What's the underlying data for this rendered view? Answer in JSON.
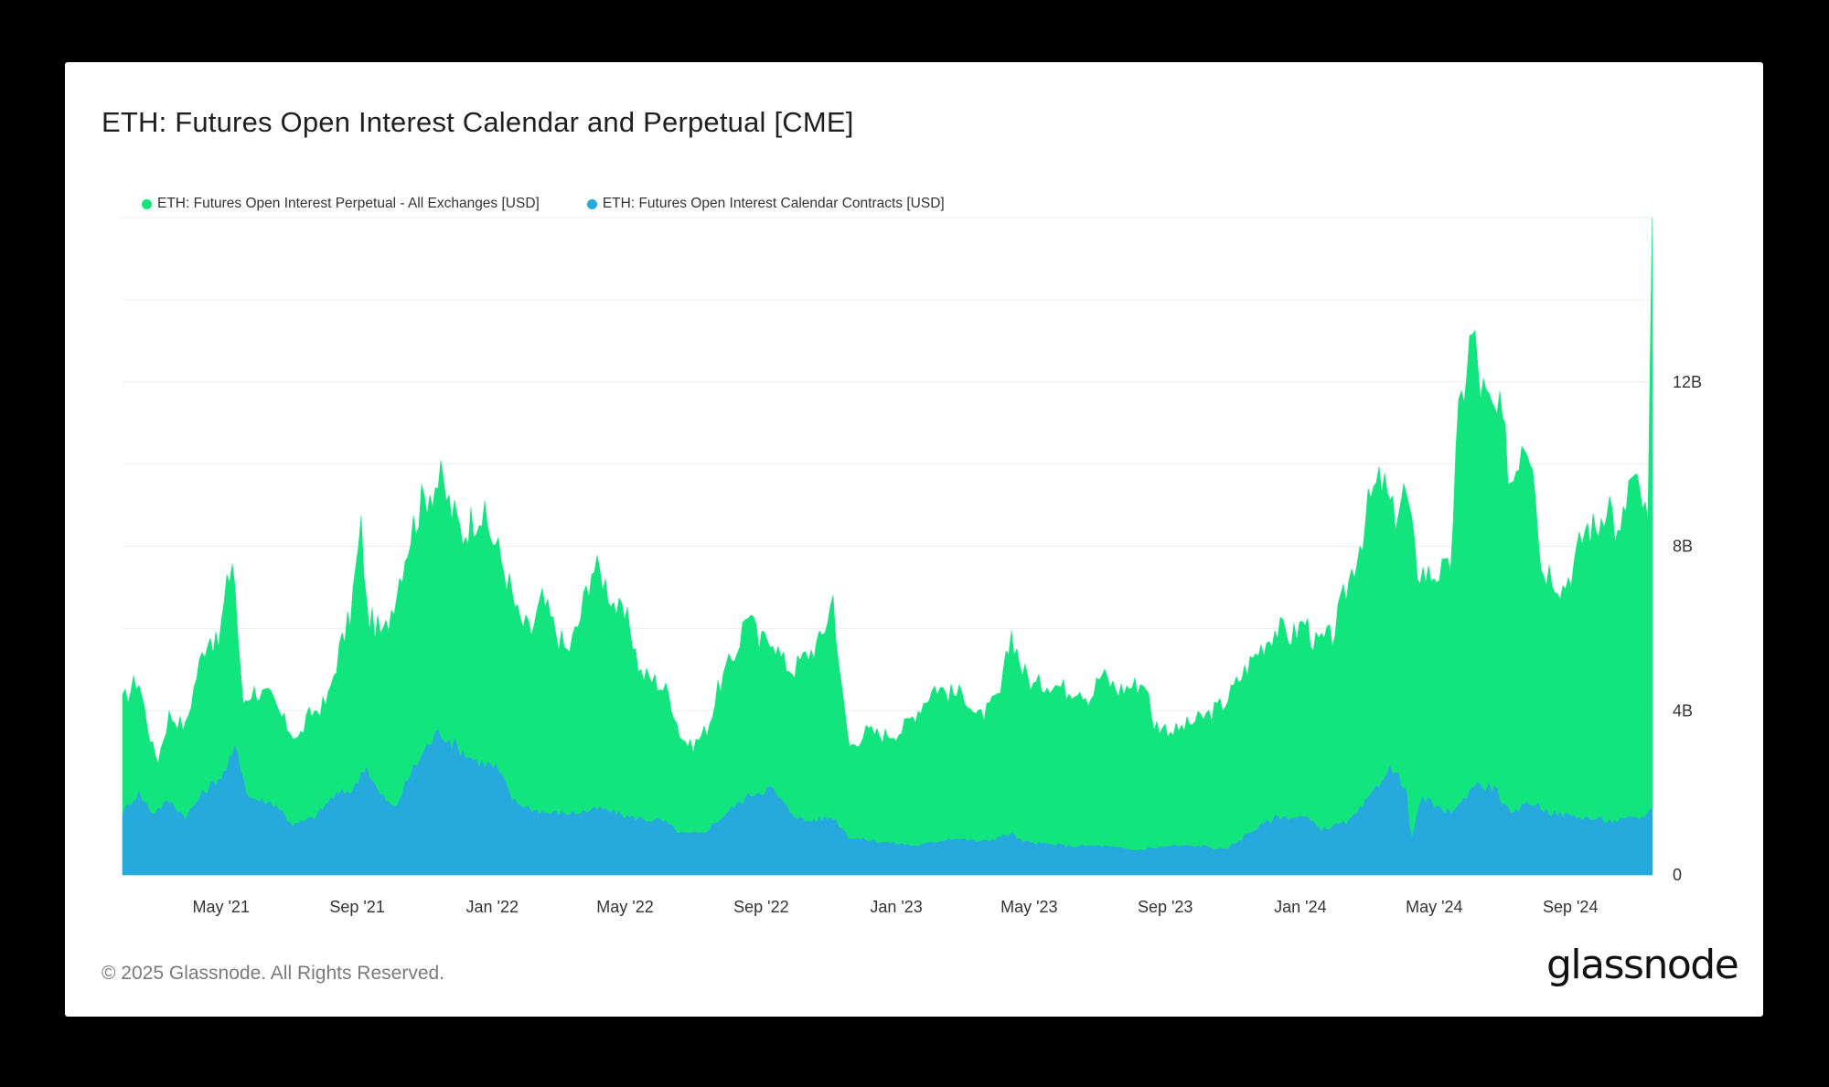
{
  "title": "ETH: Futures Open Interest Calendar and Perpetual [CME]",
  "footer": "© 2025 Glassnode. All Rights Reserved.",
  "logo": "glassnode",
  "colors": {
    "perpetual": "#12e57d",
    "calendar": "#26a9dc",
    "grid": "#eeeeee",
    "background": "#ffffff"
  },
  "chart_data": {
    "type": "area",
    "stacked": true,
    "x_range": [
      "2021-02-01",
      "2024-11-15"
    ],
    "y_range": [
      0,
      16
    ],
    "y_unit": "B USD",
    "grid": true,
    "legend_position": "top-left",
    "y_ticks": [
      {
        "value": 0,
        "label": "0"
      },
      {
        "value": 4,
        "label": "4B"
      },
      {
        "value": 8,
        "label": "8B"
      },
      {
        "value": 12,
        "label": "12B"
      }
    ],
    "x_ticks": [
      {
        "date": "2021-05-01",
        "label": "May '21"
      },
      {
        "date": "2021-09-01",
        "label": "Sep '21"
      },
      {
        "date": "2022-01-01",
        "label": "Jan '22"
      },
      {
        "date": "2022-05-01",
        "label": "May '22"
      },
      {
        "date": "2022-09-01",
        "label": "Sep '22"
      },
      {
        "date": "2023-01-01",
        "label": "Jan '23"
      },
      {
        "date": "2023-05-01",
        "label": "May '23"
      },
      {
        "date": "2023-09-01",
        "label": "Sep '23"
      },
      {
        "date": "2024-01-01",
        "label": "Jan '24"
      },
      {
        "date": "2024-05-01",
        "label": "May '24"
      },
      {
        "date": "2024-09-01",
        "label": "Sep '24"
      }
    ],
    "series": [
      {
        "name": "ETH: Futures Open Interest Perpetual - All Exchanges [USD]",
        "color": "#12e57d",
        "stacked_total": true,
        "points": [
          [
            "2021-02-01",
            4.2
          ],
          [
            "2021-02-15",
            4.8
          ],
          [
            "2021-02-28",
            3.1
          ],
          [
            "2021-03-05",
            2.8
          ],
          [
            "2021-03-15",
            3.9
          ],
          [
            "2021-03-30",
            3.6
          ],
          [
            "2021-04-10",
            5.0
          ],
          [
            "2021-04-20",
            5.9
          ],
          [
            "2021-04-28",
            5.5
          ],
          [
            "2021-05-05",
            6.8
          ],
          [
            "2021-05-12",
            7.8
          ],
          [
            "2021-05-20",
            4.2
          ],
          [
            "2021-05-30",
            4.5
          ],
          [
            "2021-06-15",
            4.3
          ],
          [
            "2021-06-30",
            3.6
          ],
          [
            "2021-07-10",
            3.3
          ],
          [
            "2021-07-20",
            3.9
          ],
          [
            "2021-08-05",
            4.2
          ],
          [
            "2021-08-15",
            5.4
          ],
          [
            "2021-08-25",
            6.2
          ],
          [
            "2021-09-05",
            8.5
          ],
          [
            "2021-09-10",
            6.3
          ],
          [
            "2021-09-25",
            5.8
          ],
          [
            "2021-10-05",
            6.8
          ],
          [
            "2021-10-15",
            7.9
          ],
          [
            "2021-10-25",
            8.8
          ],
          [
            "2021-11-05",
            9.4
          ],
          [
            "2021-11-15",
            9.6
          ],
          [
            "2021-11-25",
            8.9
          ],
          [
            "2021-12-05",
            8.3
          ],
          [
            "2021-12-20",
            8.9
          ],
          [
            "2022-01-05",
            8.0
          ],
          [
            "2022-01-15",
            7.2
          ],
          [
            "2022-01-25",
            6.2
          ],
          [
            "2022-02-05",
            5.9
          ],
          [
            "2022-02-15",
            6.7
          ],
          [
            "2022-02-28",
            5.9
          ],
          [
            "2022-03-10",
            5.4
          ],
          [
            "2022-03-20",
            6.1
          ],
          [
            "2022-04-01",
            7.5
          ],
          [
            "2022-04-10",
            7.3
          ],
          [
            "2022-04-25",
            6.4
          ],
          [
            "2022-05-05",
            6.1
          ],
          [
            "2022-05-15",
            4.9
          ],
          [
            "2022-05-30",
            4.7
          ],
          [
            "2022-06-10",
            4.4
          ],
          [
            "2022-06-20",
            3.4
          ],
          [
            "2022-06-30",
            3.1
          ],
          [
            "2022-07-15",
            3.6
          ],
          [
            "2022-07-25",
            4.6
          ],
          [
            "2022-08-10",
            5.5
          ],
          [
            "2022-08-20",
            6.5
          ],
          [
            "2022-08-30",
            5.6
          ],
          [
            "2022-09-10",
            5.9
          ],
          [
            "2022-09-20",
            5.2
          ],
          [
            "2022-09-30",
            5.0
          ],
          [
            "2022-10-10",
            5.3
          ],
          [
            "2022-10-25",
            5.7
          ],
          [
            "2022-11-05",
            6.8
          ],
          [
            "2022-11-12",
            4.6
          ],
          [
            "2022-11-20",
            3.1
          ],
          [
            "2022-12-05",
            3.5
          ],
          [
            "2022-12-20",
            3.4
          ],
          [
            "2023-01-05",
            3.5
          ],
          [
            "2023-01-20",
            4.0
          ],
          [
            "2023-02-05",
            4.6
          ],
          [
            "2023-02-20",
            4.4
          ],
          [
            "2023-03-05",
            4.4
          ],
          [
            "2023-03-15",
            3.8
          ],
          [
            "2023-03-25",
            4.0
          ],
          [
            "2023-04-05",
            4.4
          ],
          [
            "2023-04-15",
            5.9
          ],
          [
            "2023-04-25",
            5.0
          ],
          [
            "2023-05-05",
            4.6
          ],
          [
            "2023-05-20",
            4.7
          ],
          [
            "2023-06-05",
            4.5
          ],
          [
            "2023-06-15",
            4.6
          ],
          [
            "2023-06-25",
            4.3
          ],
          [
            "2023-07-05",
            4.9
          ],
          [
            "2023-07-20",
            4.5
          ],
          [
            "2023-08-01",
            4.6
          ],
          [
            "2023-08-15",
            4.7
          ],
          [
            "2023-08-20",
            3.7
          ],
          [
            "2023-09-10",
            3.5
          ],
          [
            "2023-09-25",
            3.7
          ],
          [
            "2023-10-10",
            3.9
          ],
          [
            "2023-10-25",
            4.2
          ],
          [
            "2023-11-10",
            4.9
          ],
          [
            "2023-11-25",
            5.5
          ],
          [
            "2023-12-10",
            6.0
          ],
          [
            "2023-12-25",
            5.8
          ],
          [
            "2024-01-05",
            6.2
          ],
          [
            "2024-01-15",
            5.6
          ],
          [
            "2024-01-30",
            5.8
          ],
          [
            "2024-02-10",
            6.8
          ],
          [
            "2024-02-25",
            8.2
          ],
          [
            "2024-03-05",
            9.2
          ],
          [
            "2024-03-15",
            9.6
          ],
          [
            "2024-03-25",
            8.7
          ],
          [
            "2024-04-05",
            9.4
          ],
          [
            "2024-04-15",
            7.5
          ],
          [
            "2024-04-25",
            7.3
          ],
          [
            "2024-05-05",
            7.4
          ],
          [
            "2024-05-15",
            7.3
          ],
          [
            "2024-05-22",
            10.8
          ],
          [
            "2024-06-01",
            12.8
          ],
          [
            "2024-06-05",
            13.2
          ],
          [
            "2024-06-12",
            11.9
          ],
          [
            "2024-06-20",
            11.3
          ],
          [
            "2024-06-30",
            11.1
          ],
          [
            "2024-07-10",
            9.5
          ],
          [
            "2024-07-20",
            10.8
          ],
          [
            "2024-07-30",
            10.3
          ],
          [
            "2024-08-05",
            7.5
          ],
          [
            "2024-08-15",
            7.4
          ],
          [
            "2024-08-25",
            7.0
          ],
          [
            "2024-09-05",
            7.6
          ],
          [
            "2024-09-15",
            8.5
          ],
          [
            "2024-09-25",
            8.4
          ],
          [
            "2024-10-05",
            9.3
          ],
          [
            "2024-10-15",
            8.0
          ],
          [
            "2024-10-25",
            9.7
          ],
          [
            "2024-11-05",
            9.1
          ],
          [
            "2024-11-10",
            8.4
          ],
          [
            "2024-11-14",
            16.0
          ]
        ]
      },
      {
        "name": "ETH: Futures Open Interest Calendar Contracts [USD]",
        "color": "#26a9dc",
        "points": [
          [
            "2021-02-01",
            1.5
          ],
          [
            "2021-02-15",
            2.0
          ],
          [
            "2021-02-28",
            1.5
          ],
          [
            "2021-03-15",
            1.8
          ],
          [
            "2021-03-30",
            1.4
          ],
          [
            "2021-04-15",
            2.0
          ],
          [
            "2021-05-05",
            2.5
          ],
          [
            "2021-05-15",
            3.1
          ],
          [
            "2021-05-25",
            1.9
          ],
          [
            "2021-06-20",
            1.7
          ],
          [
            "2021-07-05",
            1.2
          ],
          [
            "2021-07-25",
            1.4
          ],
          [
            "2021-08-10",
            1.9
          ],
          [
            "2021-08-30",
            2.1
          ],
          [
            "2021-09-08",
            2.7
          ],
          [
            "2021-09-20",
            2.0
          ],
          [
            "2021-10-05",
            1.6
          ],
          [
            "2021-10-20",
            2.5
          ],
          [
            "2021-11-05",
            3.2
          ],
          [
            "2021-11-15",
            3.5
          ],
          [
            "2021-11-30",
            3.1
          ],
          [
            "2021-12-15",
            2.8
          ],
          [
            "2022-01-05",
            2.6
          ],
          [
            "2022-01-20",
            1.8
          ],
          [
            "2022-02-05",
            1.6
          ],
          [
            "2022-02-20",
            1.5
          ],
          [
            "2022-03-15",
            1.5
          ],
          [
            "2022-04-10",
            1.6
          ],
          [
            "2022-05-05",
            1.4
          ],
          [
            "2022-06-05",
            1.3
          ],
          [
            "2022-06-20",
            1.0
          ],
          [
            "2022-07-10",
            1.0
          ],
          [
            "2022-08-05",
            1.6
          ],
          [
            "2022-08-25",
            2.0
          ],
          [
            "2022-09-10",
            2.1
          ],
          [
            "2022-09-25",
            1.6
          ],
          [
            "2022-10-10",
            1.3
          ],
          [
            "2022-11-05",
            1.4
          ],
          [
            "2022-11-20",
            0.9
          ],
          [
            "2022-12-20",
            0.8
          ],
          [
            "2023-01-20",
            0.7
          ],
          [
            "2023-02-20",
            0.9
          ],
          [
            "2023-03-20",
            0.8
          ],
          [
            "2023-04-15",
            1.0
          ],
          [
            "2023-04-25",
            0.8
          ],
          [
            "2023-06-05",
            0.7
          ],
          [
            "2023-07-05",
            0.7
          ],
          [
            "2023-08-05",
            0.6
          ],
          [
            "2023-09-05",
            0.7
          ],
          [
            "2023-10-05",
            0.7
          ],
          [
            "2023-10-25",
            0.6
          ],
          [
            "2023-11-20",
            1.1
          ],
          [
            "2023-12-10",
            1.4
          ],
          [
            "2024-01-05",
            1.4
          ],
          [
            "2024-01-20",
            1.1
          ],
          [
            "2024-02-15",
            1.3
          ],
          [
            "2024-03-05",
            1.9
          ],
          [
            "2024-03-20",
            2.6
          ],
          [
            "2024-04-05",
            2.2
          ],
          [
            "2024-04-10",
            0.8
          ],
          [
            "2024-04-20",
            1.9
          ],
          [
            "2024-05-10",
            1.5
          ],
          [
            "2024-05-25",
            1.7
          ],
          [
            "2024-06-05",
            2.2
          ],
          [
            "2024-06-25",
            2.1
          ],
          [
            "2024-07-10",
            1.4
          ],
          [
            "2024-07-25",
            1.8
          ],
          [
            "2024-08-15",
            1.5
          ],
          [
            "2024-09-10",
            1.4
          ],
          [
            "2024-10-10",
            1.3
          ],
          [
            "2024-11-05",
            1.4
          ],
          [
            "2024-11-14",
            1.6
          ]
        ]
      }
    ]
  }
}
